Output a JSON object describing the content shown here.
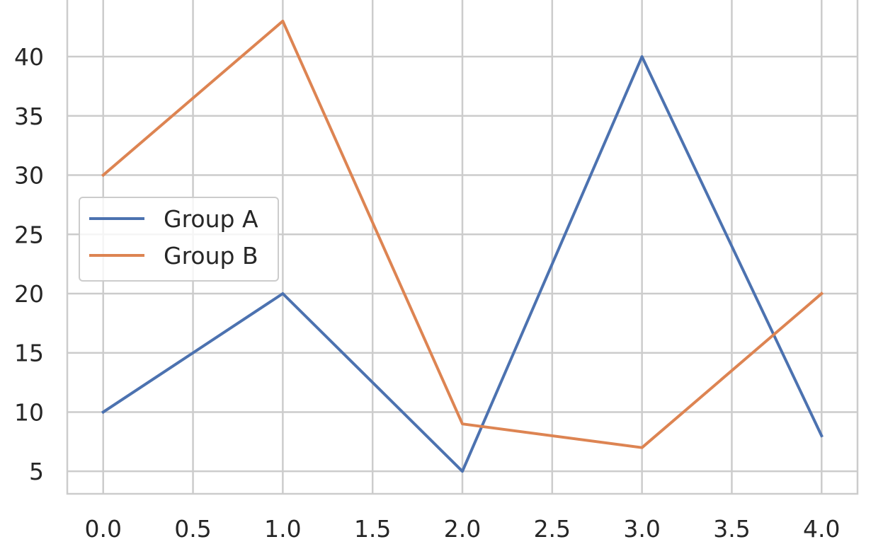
{
  "chart_data": {
    "type": "line",
    "x": [
      0,
      1,
      2,
      3,
      4
    ],
    "series": [
      {
        "name": "Group A",
        "values": [
          10,
          20,
          5,
          40,
          8
        ],
        "color": "#4c72b0"
      },
      {
        "name": "Group B",
        "values": [
          30,
          43,
          9,
          7,
          20
        ],
        "color": "#dd8452"
      }
    ],
    "xlim": [
      -0.2,
      4.2
    ],
    "ylim": [
      3.1,
      44.9
    ],
    "x_ticks": [
      0.0,
      0.5,
      1.0,
      1.5,
      2.0,
      2.5,
      3.0,
      3.5,
      4.0
    ],
    "x_tick_labels": [
      "0.0",
      "0.5",
      "1.0",
      "1.5",
      "2.0",
      "2.5",
      "3.0",
      "3.5",
      "4.0"
    ],
    "y_ticks": [
      5,
      10,
      15,
      20,
      25,
      30,
      35,
      40
    ],
    "y_tick_labels": [
      "5",
      "10",
      "15",
      "20",
      "25",
      "30",
      "35",
      "40"
    ],
    "title": "",
    "xlabel": "",
    "ylabel": "",
    "grid": true,
    "legend_position": "center-left",
    "grid_color": "#cccccc",
    "text_color": "#262626"
  }
}
